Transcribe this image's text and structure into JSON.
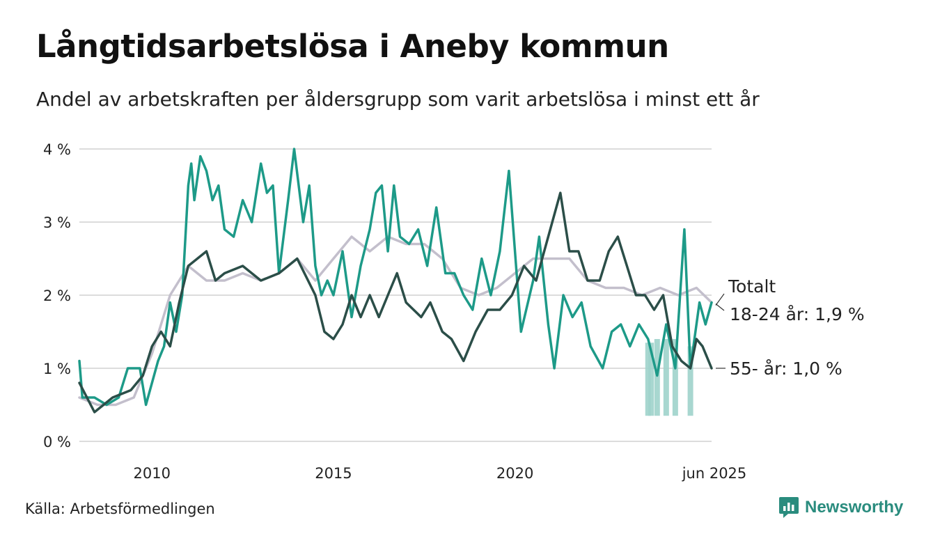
{
  "title": "Långtidsarbetslösa i Aneby kommun",
  "subtitle": "Andel av arbetskraften per åldersgrupp som varit arbetslösa i minst ett år",
  "source": "Källa: Arbetsförmedlingen",
  "brand": "Newsworthy",
  "colors": {
    "total": "#c3bfcc",
    "youth": "#1d9a88",
    "youth_band": "#9ed3cb",
    "senior": "#2b4e48",
    "grid": "#dcdcdc",
    "brand": "#2a8c7e"
  },
  "chart_data": {
    "type": "line",
    "title": "Långtidsarbetslösa i Aneby kommun",
    "subtitle": "Andel av arbetskraften per åldersgrupp som varit arbetslösa i minst ett år",
    "ylim": [
      0,
      4
    ],
    "yticks": [
      0,
      1,
      2,
      3,
      4
    ],
    "ytick_labels": [
      "0 %",
      "1 %",
      "2 %",
      "3 %",
      "4 %"
    ],
    "xticks": [
      {
        "date": "2010-01",
        "label": "2010"
      },
      {
        "date": "2015-01",
        "label": "2015"
      },
      {
        "date": "2020-01",
        "label": "2020"
      },
      {
        "date": "2025-06",
        "label": "jun 2025"
      }
    ],
    "xrange": [
      "2008-01",
      "2025-06"
    ],
    "grid": true,
    "legend": "direct labels at line ends",
    "series": [
      {
        "name": "Totalt",
        "label": "Totalt",
        "color": "#c3bfcc",
        "points": [
          [
            "2008-01",
            0.6
          ],
          [
            "2008-07",
            0.5
          ],
          [
            "2009-01",
            0.5
          ],
          [
            "2009-07",
            0.6
          ],
          [
            "2010-01",
            1.2
          ],
          [
            "2010-07",
            2.0
          ],
          [
            "2011-01",
            2.4
          ],
          [
            "2011-07",
            2.2
          ],
          [
            "2012-01",
            2.2
          ],
          [
            "2012-07",
            2.3
          ],
          [
            "2013-01",
            2.2
          ],
          [
            "2013-07",
            2.3
          ],
          [
            "2014-01",
            2.5
          ],
          [
            "2014-07",
            2.2
          ],
          [
            "2015-01",
            2.5
          ],
          [
            "2015-07",
            2.8
          ],
          [
            "2016-01",
            2.6
          ],
          [
            "2016-07",
            2.8
          ],
          [
            "2017-01",
            2.7
          ],
          [
            "2017-07",
            2.7
          ],
          [
            "2018-01",
            2.5
          ],
          [
            "2018-07",
            2.1
          ],
          [
            "2019-01",
            2.0
          ],
          [
            "2019-07",
            2.1
          ],
          [
            "2020-01",
            2.3
          ],
          [
            "2020-07",
            2.5
          ],
          [
            "2021-01",
            2.5
          ],
          [
            "2021-07",
            2.5
          ],
          [
            "2022-01",
            2.2
          ],
          [
            "2022-07",
            2.1
          ],
          [
            "2023-01",
            2.1
          ],
          [
            "2023-07",
            2.0
          ],
          [
            "2024-01",
            2.1
          ],
          [
            "2024-07",
            2.0
          ],
          [
            "2025-01",
            2.1
          ],
          [
            "2025-06",
            1.9
          ]
        ]
      },
      {
        "name": "18-24 år",
        "label": "18-24 år: 1,9 %",
        "color": "#1d9a88",
        "points": [
          [
            "2008-01",
            1.1
          ],
          [
            "2008-02",
            0.6
          ],
          [
            "2008-06",
            0.6
          ],
          [
            "2008-10",
            0.5
          ],
          [
            "2009-02",
            0.6
          ],
          [
            "2009-05",
            1.0
          ],
          [
            "2009-09",
            1.0
          ],
          [
            "2009-11",
            0.5
          ],
          [
            "2010-03",
            1.1
          ],
          [
            "2010-05",
            1.3
          ],
          [
            "2010-07",
            1.9
          ],
          [
            "2010-09",
            1.5
          ],
          [
            "2010-11",
            2.0
          ],
          [
            "2011-01",
            3.5
          ],
          [
            "2011-02",
            3.8
          ],
          [
            "2011-03",
            3.3
          ],
          [
            "2011-05",
            3.9
          ],
          [
            "2011-07",
            3.7
          ],
          [
            "2011-09",
            3.3
          ],
          [
            "2011-11",
            3.5
          ],
          [
            "2012-01",
            2.9
          ],
          [
            "2012-04",
            2.8
          ],
          [
            "2012-07",
            3.3
          ],
          [
            "2012-10",
            3.0
          ],
          [
            "2013-01",
            3.8
          ],
          [
            "2013-03",
            3.4
          ],
          [
            "2013-05",
            3.5
          ],
          [
            "2013-07",
            2.3
          ],
          [
            "2013-10",
            3.3
          ],
          [
            "2013-12",
            4.0
          ],
          [
            "2014-03",
            3.0
          ],
          [
            "2014-05",
            3.5
          ],
          [
            "2014-07",
            2.4
          ],
          [
            "2014-09",
            2.0
          ],
          [
            "2014-11",
            2.2
          ],
          [
            "2015-01",
            2.0
          ],
          [
            "2015-04",
            2.6
          ],
          [
            "2015-07",
            1.7
          ],
          [
            "2015-10",
            2.4
          ],
          [
            "2016-01",
            2.9
          ],
          [
            "2016-03",
            3.4
          ],
          [
            "2016-05",
            3.5
          ],
          [
            "2016-07",
            2.6
          ],
          [
            "2016-09",
            3.5
          ],
          [
            "2016-11",
            2.8
          ],
          [
            "2017-02",
            2.7
          ],
          [
            "2017-05",
            2.9
          ],
          [
            "2017-08",
            2.4
          ],
          [
            "2017-11",
            3.2
          ],
          [
            "2018-02",
            2.3
          ],
          [
            "2018-05",
            2.3
          ],
          [
            "2018-08",
            2.0
          ],
          [
            "2018-11",
            1.8
          ],
          [
            "2019-02",
            2.5
          ],
          [
            "2019-05",
            2.0
          ],
          [
            "2019-08",
            2.6
          ],
          [
            "2019-11",
            3.7
          ],
          [
            "2020-03",
            1.5
          ],
          [
            "2020-07",
            2.2
          ],
          [
            "2020-09",
            2.8
          ],
          [
            "2020-12",
            1.6
          ],
          [
            "2021-02",
            1.0
          ],
          [
            "2021-05",
            2.0
          ],
          [
            "2021-08",
            1.7
          ],
          [
            "2021-11",
            1.9
          ],
          [
            "2022-02",
            1.3
          ],
          [
            "2022-06",
            1.0
          ],
          [
            "2022-09",
            1.5
          ],
          [
            "2022-12",
            1.6
          ],
          [
            "2023-03",
            1.3
          ],
          [
            "2023-06",
            1.6
          ],
          [
            "2023-09",
            1.4
          ],
          [
            "2023-12",
            0.9
          ],
          [
            "2024-03",
            1.6
          ],
          [
            "2024-06",
            1.0
          ],
          [
            "2024-09",
            2.9
          ],
          [
            "2024-11",
            1.0
          ],
          [
            "2025-02",
            1.9
          ],
          [
            "2025-04",
            1.6
          ],
          [
            "2025-06",
            1.9
          ]
        ]
      },
      {
        "name": "55- år",
        "label": "55- år: 1,0 %",
        "color": "#2b4e48",
        "points": [
          [
            "2008-01",
            0.8
          ],
          [
            "2008-06",
            0.4
          ],
          [
            "2008-12",
            0.6
          ],
          [
            "2009-06",
            0.7
          ],
          [
            "2009-10",
            0.9
          ],
          [
            "2010-01",
            1.3
          ],
          [
            "2010-04",
            1.5
          ],
          [
            "2010-07",
            1.3
          ],
          [
            "2010-10",
            1.9
          ],
          [
            "2011-01",
            2.4
          ],
          [
            "2011-07",
            2.6
          ],
          [
            "2011-10",
            2.2
          ],
          [
            "2012-01",
            2.3
          ],
          [
            "2012-07",
            2.4
          ],
          [
            "2013-01",
            2.2
          ],
          [
            "2013-07",
            2.3
          ],
          [
            "2014-01",
            2.5
          ],
          [
            "2014-07",
            2.0
          ],
          [
            "2014-10",
            1.5
          ],
          [
            "2015-01",
            1.4
          ],
          [
            "2015-04",
            1.6
          ],
          [
            "2015-07",
            2.0
          ],
          [
            "2015-10",
            1.7
          ],
          [
            "2016-01",
            2.0
          ],
          [
            "2016-04",
            1.7
          ],
          [
            "2016-07",
            2.0
          ],
          [
            "2016-10",
            2.3
          ],
          [
            "2017-01",
            1.9
          ],
          [
            "2017-06",
            1.7
          ],
          [
            "2017-09",
            1.9
          ],
          [
            "2018-01",
            1.5
          ],
          [
            "2018-04",
            1.4
          ],
          [
            "2018-08",
            1.1
          ],
          [
            "2018-12",
            1.5
          ],
          [
            "2019-04",
            1.8
          ],
          [
            "2019-08",
            1.8
          ],
          [
            "2019-12",
            2.0
          ],
          [
            "2020-04",
            2.4
          ],
          [
            "2020-08",
            2.2
          ],
          [
            "2020-12",
            2.8
          ],
          [
            "2021-04",
            3.4
          ],
          [
            "2021-07",
            2.6
          ],
          [
            "2021-10",
            2.6
          ],
          [
            "2022-01",
            2.2
          ],
          [
            "2022-05",
            2.2
          ],
          [
            "2022-08",
            2.6
          ],
          [
            "2022-11",
            2.8
          ],
          [
            "2023-02",
            2.4
          ],
          [
            "2023-05",
            2.0
          ],
          [
            "2023-08",
            2.0
          ],
          [
            "2023-11",
            1.8
          ],
          [
            "2024-02",
            2.0
          ],
          [
            "2024-05",
            1.3
          ],
          [
            "2024-08",
            1.1
          ],
          [
            "2024-11",
            1.0
          ],
          [
            "2025-01",
            1.4
          ],
          [
            "2025-03",
            1.3
          ],
          [
            "2025-06",
            1.0
          ]
        ]
      }
    ],
    "youth_uncertainty_bars": [
      [
        "2023-09",
        0.35,
        1.35
      ],
      [
        "2023-10",
        0.35,
        1.35
      ],
      [
        "2023-12",
        0.35,
        1.4
      ],
      [
        "2024-03",
        0.35,
        1.4
      ],
      [
        "2024-06",
        0.35,
        1.4
      ],
      [
        "2024-11",
        0.35,
        1.3
      ]
    ]
  }
}
